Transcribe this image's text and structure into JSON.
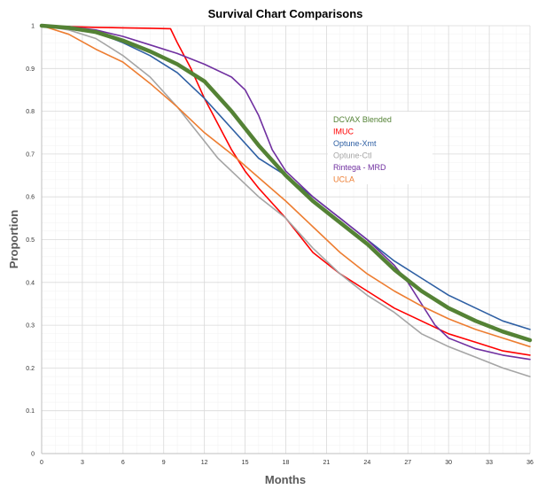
{
  "chart_data": {
    "type": "line",
    "title": "Survival Chart Comparisons",
    "xlabel": "Months",
    "ylabel": "Proportion",
    "xlim": [
      0,
      36
    ],
    "ylim": [
      0,
      1
    ],
    "xticks": [
      0,
      3,
      6,
      9,
      12,
      15,
      18,
      21,
      24,
      27,
      30,
      33,
      36
    ],
    "xtick_labels": [
      "0",
      "3",
      "6",
      "9",
      "12",
      "15",
      "18",
      "21",
      "24",
      "27",
      "30",
      "33",
      "36"
    ],
    "yticks": [
      0,
      0.1,
      0.2,
      0.3,
      0.4,
      0.5,
      0.6,
      0.7,
      0.8,
      0.9,
      1
    ],
    "ytick_labels": [
      "0",
      "0.1",
      "0.2",
      "0.3",
      "0.4",
      "0.5",
      "0.6",
      "0.7",
      "0.8",
      "0.9",
      "1"
    ],
    "grid": true,
    "legend_position": "center-right",
    "series": [
      {
        "name": "DCVAX Blended",
        "color": "#548235",
        "emphasis": true,
        "x": [
          0,
          2,
          4,
          6,
          8,
          10,
          12,
          14,
          16,
          18,
          20,
          22,
          24,
          26,
          28,
          30,
          32,
          34,
          36
        ],
        "y": [
          1.0,
          0.995,
          0.985,
          0.965,
          0.94,
          0.91,
          0.87,
          0.8,
          0.72,
          0.65,
          0.59,
          0.54,
          0.49,
          0.43,
          0.38,
          0.34,
          0.31,
          0.285,
          0.265
        ]
      },
      {
        "name": "IMUC",
        "color": "#ff0000",
        "x": [
          0,
          2,
          4,
          6,
          8,
          9.5,
          10,
          11,
          12,
          13,
          14,
          15,
          16,
          18,
          20,
          22,
          24,
          26,
          28,
          30,
          32,
          34,
          36
        ],
        "y": [
          1.0,
          0.998,
          0.996,
          0.995,
          0.994,
          0.993,
          0.96,
          0.9,
          0.83,
          0.77,
          0.71,
          0.66,
          0.62,
          0.55,
          0.47,
          0.42,
          0.38,
          0.34,
          0.31,
          0.28,
          0.26,
          0.24,
          0.23
        ]
      },
      {
        "name": "Optune-Xmt",
        "color": "#2e5fa3",
        "x": [
          0,
          2,
          4,
          6,
          8,
          10,
          12,
          14,
          16,
          18,
          20,
          22,
          24,
          26,
          28,
          30,
          32,
          34,
          36
        ],
        "y": [
          1.0,
          0.995,
          0.985,
          0.96,
          0.93,
          0.89,
          0.83,
          0.76,
          0.69,
          0.65,
          0.6,
          0.55,
          0.5,
          0.45,
          0.41,
          0.37,
          0.34,
          0.31,
          0.29
        ]
      },
      {
        "name": "Optune-Ctl",
        "color": "#a5a5a5",
        "x": [
          0,
          2,
          4,
          6,
          8,
          10,
          11,
          12,
          13,
          14,
          16,
          18,
          20,
          22,
          24,
          26,
          28,
          30,
          32,
          34,
          36
        ],
        "y": [
          1.0,
          0.99,
          0.97,
          0.93,
          0.88,
          0.81,
          0.77,
          0.73,
          0.69,
          0.66,
          0.6,
          0.55,
          0.48,
          0.42,
          0.37,
          0.33,
          0.28,
          0.25,
          0.225,
          0.2,
          0.18
        ]
      },
      {
        "name": "Rintega - MRD",
        "color": "#7030a0",
        "x": [
          0,
          2,
          4,
          6,
          8,
          10,
          12,
          14,
          15,
          16,
          17,
          18,
          20,
          22,
          24,
          26,
          27,
          28,
          29,
          30,
          32,
          34,
          36
        ],
        "y": [
          1.0,
          0.998,
          0.99,
          0.975,
          0.955,
          0.935,
          0.91,
          0.88,
          0.85,
          0.79,
          0.71,
          0.66,
          0.6,
          0.55,
          0.5,
          0.44,
          0.4,
          0.35,
          0.3,
          0.27,
          0.245,
          0.23,
          0.22
        ]
      },
      {
        "name": "UCLA",
        "color": "#ed7d31",
        "x": [
          0,
          2,
          4,
          6,
          8,
          10,
          12,
          14,
          16,
          18,
          20,
          22,
          24,
          26,
          28,
          30,
          32,
          34,
          36
        ],
        "y": [
          1.0,
          0.98,
          0.945,
          0.915,
          0.865,
          0.81,
          0.75,
          0.7,
          0.645,
          0.59,
          0.53,
          0.47,
          0.42,
          0.38,
          0.345,
          0.315,
          0.29,
          0.27,
          0.25
        ]
      }
    ]
  }
}
